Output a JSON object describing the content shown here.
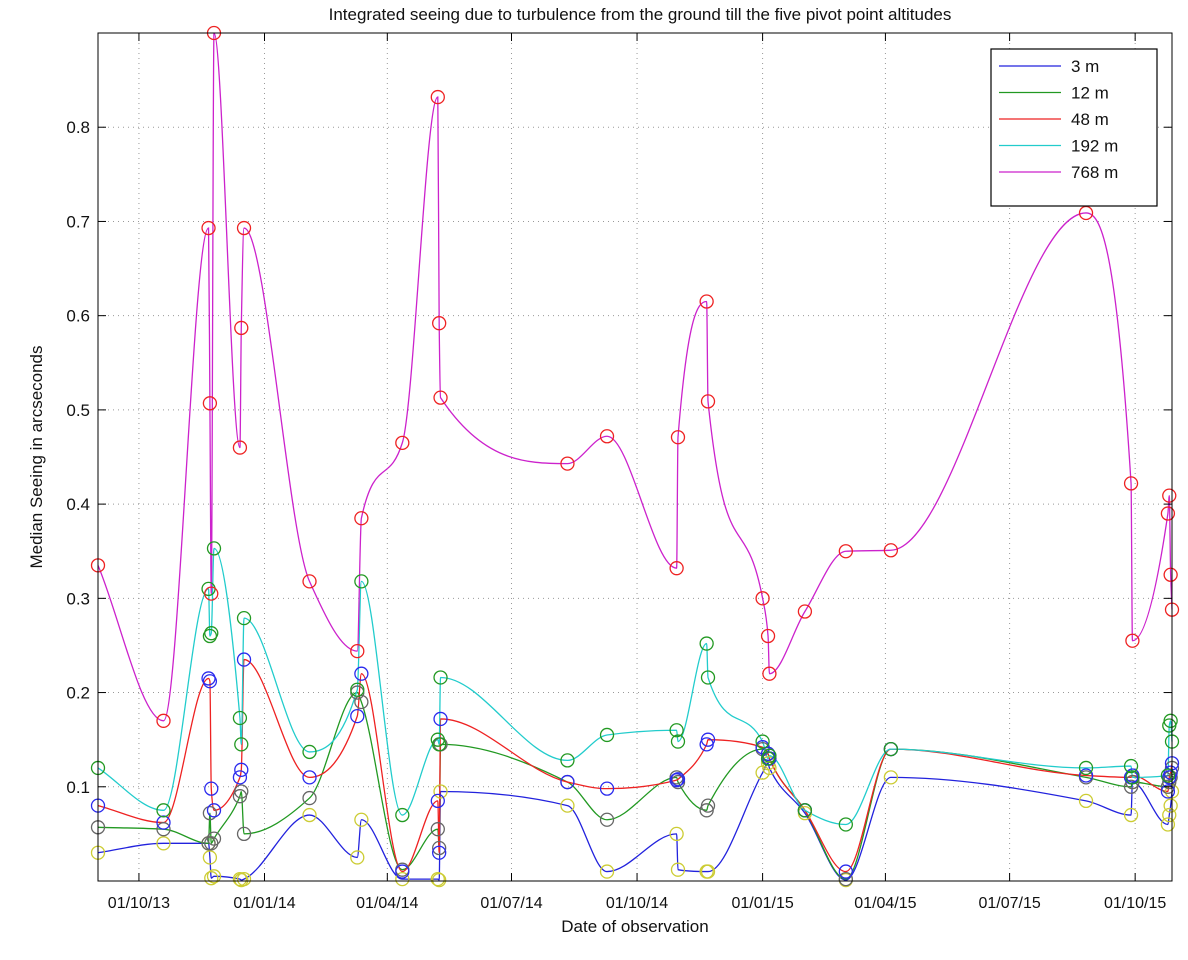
{
  "chart_data": {
    "type": "line",
    "title": "Integrated seeing due to turbulence from the ground till the five pivot point altitudes",
    "xlabel": "Date of observation",
    "ylabel": "Median Seeing in arcseconds",
    "x_axis_type": "date",
    "xlim": [
      "2013-09-01",
      "2015-10-28"
    ],
    "ylim": [
      0,
      0.9
    ],
    "x_ticks": [
      {
        "date": "2013-10-01",
        "label": "01/10/13"
      },
      {
        "date": "2014-01-01",
        "label": "01/01/14"
      },
      {
        "date": "2014-04-01",
        "label": "01/04/14"
      },
      {
        "date": "2014-07-01",
        "label": "01/07/14"
      },
      {
        "date": "2014-10-01",
        "label": "01/10/14"
      },
      {
        "date": "2015-01-01",
        "label": "01/01/15"
      },
      {
        "date": "2015-04-01",
        "label": "01/04/15"
      },
      {
        "date": "2015-07-01",
        "label": "01/07/15"
      },
      {
        "date": "2015-10-01",
        "label": "01/10/15"
      }
    ],
    "y_ticks": [
      0.1,
      0.2,
      0.3,
      0.4,
      0.5,
      0.6,
      0.7,
      0.8
    ],
    "y_tick_labels": [
      "0.1",
      "0.2",
      "0.3",
      "0.4",
      "0.5",
      "0.6",
      "0.7",
      "0.8"
    ],
    "grid": true,
    "grid_style": "dotted",
    "legend_position": "top-right",
    "marker": "circle",
    "marker_colors": [
      "#cccc33",
      "#666666",
      "#2a2aee",
      "#229922",
      "#ee2222"
    ],
    "x": [
      "2013-09-01",
      "2013-10-19",
      "2013-11-21",
      "2013-11-22",
      "2013-11-23",
      "2013-11-25",
      "2013-12-14",
      "2013-12-15",
      "2013-12-17",
      "2014-02-03",
      "2014-03-10",
      "2014-03-13",
      "2014-04-12",
      "2014-05-08",
      "2014-05-09",
      "2014-05-10",
      "2014-08-11",
      "2014-09-09",
      "2014-10-30",
      "2014-10-31",
      "2014-11-21",
      "2014-11-22",
      "2015-01-01",
      "2015-01-05",
      "2015-01-06",
      "2015-02-01",
      "2015-03-03",
      "2015-04-05",
      "2015-08-26",
      "2015-09-28",
      "2015-09-29",
      "2015-10-25",
      "2015-10-26",
      "2015-10-27",
      "2015-10-28"
    ],
    "series": [
      {
        "name": "3 m",
        "color": "#2222dd",
        "values": [
          0.03,
          0.04,
          0.04,
          0.025,
          0.003,
          0.005,
          0.002,
          0.001,
          0.002,
          0.07,
          0.025,
          0.065,
          0.002,
          0.002,
          0.001,
          0.095,
          0.08,
          0.01,
          0.05,
          0.012,
          0.01,
          0.01,
          0.115,
          0.125,
          0.12,
          0.072,
          0.001,
          0.11,
          0.085,
          0.07,
          0.105,
          0.06,
          0.07,
          0.08,
          0.095
        ]
      },
      {
        "name": "12 m",
        "color": "#229922",
        "values": [
          0.057,
          0.055,
          0.04,
          0.072,
          0.04,
          0.045,
          0.09,
          0.095,
          0.05,
          0.088,
          0.2,
          0.19,
          0.012,
          0.055,
          0.035,
          0.145,
          0.105,
          0.065,
          0.11,
          0.105,
          0.075,
          0.08,
          0.14,
          0.135,
          0.13,
          0.075,
          0.002,
          0.14,
          0.11,
          0.1,
          0.105,
          0.1,
          0.105,
          0.11,
          0.12
        ]
      },
      {
        "name": "48 m",
        "color": "#ee2222",
        "values": [
          0.08,
          0.062,
          0.215,
          0.212,
          0.098,
          0.075,
          0.11,
          0.118,
          0.235,
          0.11,
          0.175,
          0.22,
          0.01,
          0.085,
          0.03,
          0.172,
          0.105,
          0.098,
          0.107,
          0.108,
          0.145,
          0.15,
          0.142,
          0.135,
          0.13,
          0.075,
          0.01,
          0.14,
          0.112,
          0.11,
          0.112,
          0.095,
          0.11,
          0.115,
          0.125
        ]
      },
      {
        "name": "192 m",
        "color": "#22cccc",
        "values": [
          0.12,
          0.075,
          0.31,
          0.26,
          0.263,
          0.353,
          0.173,
          0.145,
          0.279,
          0.137,
          0.203,
          0.318,
          0.07,
          0.15,
          0.145,
          0.216,
          0.128,
          0.155,
          0.16,
          0.148,
          0.252,
          0.216,
          0.148,
          0.13,
          0.133,
          0.075,
          0.06,
          0.14,
          0.12,
          0.122,
          0.11,
          0.112,
          0.165,
          0.17,
          0.148
        ]
      },
      {
        "name": "768 m",
        "color": "#cc22cc",
        "values": [
          0.335,
          0.17,
          0.693,
          0.507,
          0.305,
          0.9,
          0.46,
          0.587,
          0.693,
          0.318,
          0.244,
          0.385,
          0.465,
          0.832,
          0.592,
          0.513,
          0.443,
          0.472,
          0.332,
          0.471,
          0.615,
          0.509,
          0.3,
          0.26,
          0.22,
          0.286,
          0.35,
          0.351,
          0.709,
          0.422,
          0.255,
          0.39,
          0.409,
          0.325,
          0.288
        ]
      }
    ]
  }
}
